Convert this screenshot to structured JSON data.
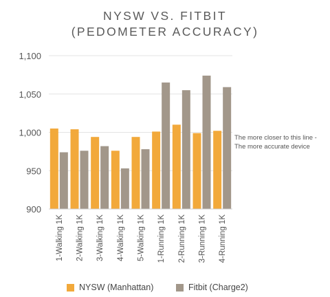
{
  "chart_data": {
    "type": "bar",
    "title_lines": [
      "NYSW VS. FITBIT",
      "(PEDOMETER ACCURACY)"
    ],
    "categories": [
      "1-Walking 1K",
      "2-Walking 1K",
      "3-Walking 1K",
      "4-Walking 1K",
      "5-Walking 1K",
      "1-Running 1K",
      "2-Running 1K",
      "3-Running 1K",
      "4-Running 1K"
    ],
    "series": [
      {
        "name": "NYSW (Manhattan)",
        "color": "#f2a93b",
        "values": [
          1005,
          1004,
          994,
          976,
          994,
          1001,
          1010,
          999,
          1002
        ]
      },
      {
        "name": "Fitbit (Charge2)",
        "color": "#a2978a",
        "values": [
          974,
          976,
          982,
          953,
          978,
          1065,
          1055,
          1074,
          1059
        ]
      }
    ],
    "yticks": [
      "900",
      "950",
      "1,000",
      "1,050",
      "1,100"
    ],
    "ylim": [
      900,
      1100
    ],
    "reference_line": 1000,
    "annotation_lines": [
      "The more closer to this line -",
      "The more accurate device"
    ],
    "legend_position": "bottom",
    "grid": true
  }
}
